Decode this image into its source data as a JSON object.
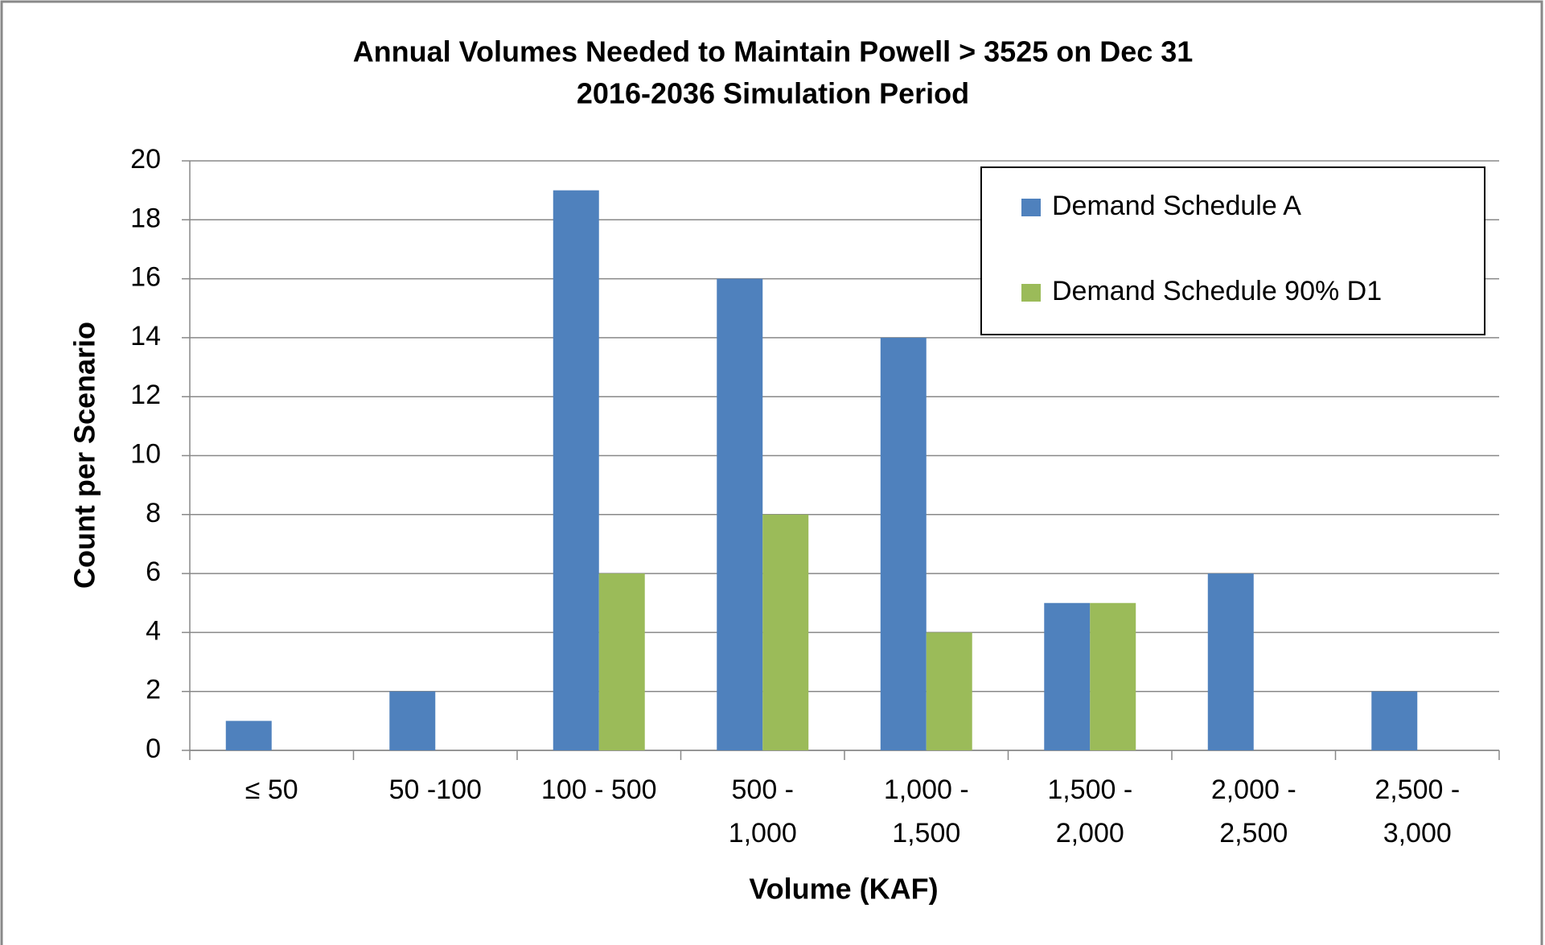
{
  "chart_data": {
    "type": "bar",
    "title": "Annual Volumes  Needed to Maintain   Powell > 3525 on Dec 31",
    "subtitle": "2016-2036 Simulation Period",
    "x_label": "Volume (KAF)",
    "y_label": "Count per Scenario",
    "categories": [
      "≤ 50",
      "50 -100",
      "100 - 500",
      "500 - 1,000",
      "1,000 - 1,500",
      "1,500 - 2,000",
      "2,000 - 2,500",
      "2,500 - 3,000"
    ],
    "series": [
      {
        "name": "Demand Schedule A",
        "color": "#4f81bd",
        "values": [
          1,
          2,
          19,
          16,
          14,
          5,
          6,
          2
        ]
      },
      {
        "name": "Demand Schedule 90% D1",
        "color": "#9bbb59",
        "values": [
          0,
          0,
          6,
          8,
          4,
          5,
          0,
          0
        ]
      }
    ],
    "ylim": [
      0,
      20
    ],
    "yticks": [
      0,
      2,
      4,
      6,
      8,
      10,
      12,
      14,
      16,
      18,
      20
    ],
    "grid": true,
    "legend": "upper right"
  }
}
